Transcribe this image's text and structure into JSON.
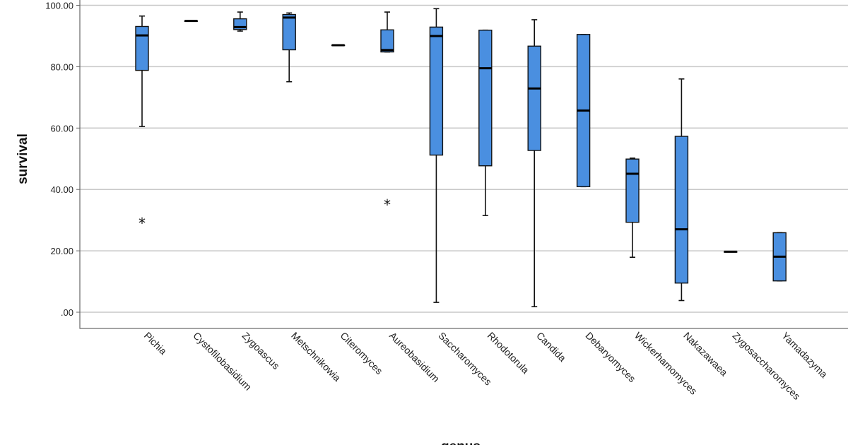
{
  "chart_data": {
    "type": "boxplot",
    "xlabel": "genus",
    "ylabel": "survival",
    "ylim": [
      0,
      100
    ],
    "yticks": [
      0,
      20,
      40,
      60,
      80,
      100
    ],
    "ytick_labels": [
      ".00",
      "20.00",
      "40.00",
      "60.00",
      "80.00",
      "100.00"
    ],
    "grid": true,
    "box_color": "#4a8fe0",
    "series": [
      {
        "category": "Pichia",
        "min": 60.5,
        "q1": 78.8,
        "median": 90.2,
        "q3": 93.1,
        "max": 96.5,
        "outliers": [
          29.5
        ]
      },
      {
        "category": "Cystofilobasidium",
        "min": 94.9,
        "q1": 94.9,
        "median": 94.9,
        "q3": 94.9,
        "max": 94.9,
        "outliers": []
      },
      {
        "category": "Zygoascus",
        "min": 91.6,
        "q1": 92.1,
        "median": 92.9,
        "q3": 95.6,
        "max": 97.8,
        "outliers": []
      },
      {
        "category": "Metschnikowia",
        "min": 75.1,
        "q1": 85.5,
        "median": 96.0,
        "q3": 97.0,
        "max": 97.5,
        "outliers": []
      },
      {
        "category": "Citeromyces",
        "min": 87.0,
        "q1": 87.0,
        "median": 87.0,
        "q3": 87.0,
        "max": 87.0,
        "outliers": []
      },
      {
        "category": "Aureobasidium",
        "min": 84.8,
        "q1": 84.8,
        "median": 85.4,
        "q3": 92.0,
        "max": 97.8,
        "outliers": [
          35.5
        ]
      },
      {
        "category": "Saccharomyces",
        "min": 3.2,
        "q1": 51.2,
        "median": 90.0,
        "q3": 92.9,
        "max": 98.9,
        "outliers": []
      },
      {
        "category": "Rhodotorula",
        "min": 31.5,
        "q1": 47.7,
        "median": 79.5,
        "q3": 91.9,
        "max": 91.9,
        "outliers": []
      },
      {
        "category": "Candida",
        "min": 1.8,
        "q1": 52.7,
        "median": 72.9,
        "q3": 86.7,
        "max": 95.3,
        "outliers": []
      },
      {
        "category": "Debaryomyces",
        "min": 40.9,
        "q1": 40.9,
        "median": 65.7,
        "q3": 90.5,
        "max": 90.5,
        "outliers": []
      },
      {
        "category": "Wickerhamomyces",
        "min": 17.9,
        "q1": 29.3,
        "median": 45.1,
        "q3": 49.9,
        "max": 50.2,
        "outliers": []
      },
      {
        "category": "Nakazawaea",
        "min": 3.8,
        "q1": 9.5,
        "median": 27.0,
        "q3": 57.3,
        "max": 76.0,
        "outliers": []
      },
      {
        "category": "Zygosaccharomyces",
        "min": 19.7,
        "q1": 19.7,
        "median": 19.7,
        "q3": 19.7,
        "max": 19.7,
        "outliers": []
      },
      {
        "category": "Yamadazyma",
        "min": 10.2,
        "q1": 10.2,
        "median": 18.1,
        "q3": 25.9,
        "max": 25.9,
        "outliers": []
      }
    ]
  }
}
